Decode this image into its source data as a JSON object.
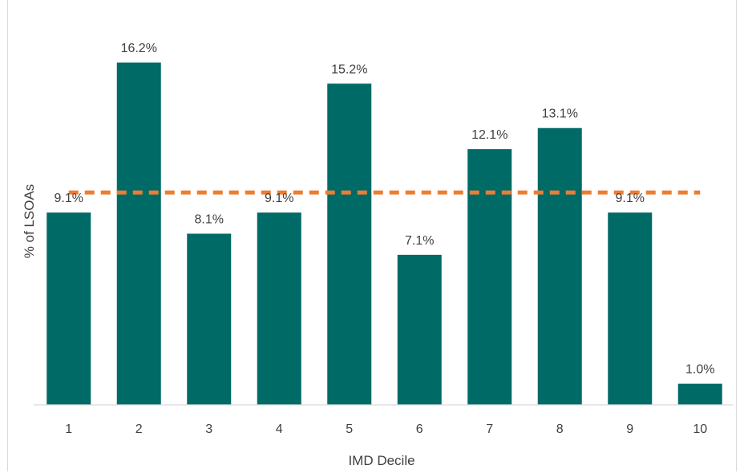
{
  "chart_data": {
    "type": "bar",
    "categories": [
      "1",
      "2",
      "3",
      "4",
      "5",
      "6",
      "7",
      "8",
      "9",
      "10"
    ],
    "values": [
      9.1,
      16.2,
      8.1,
      9.1,
      15.2,
      7.1,
      12.1,
      13.1,
      9.1,
      1.0
    ],
    "data_labels": [
      "9.1%",
      "16.2%",
      "8.1%",
      "9.1%",
      "15.2%",
      "7.1%",
      "12.1%",
      "13.1%",
      "9.1%",
      "1.0%"
    ],
    "reference_line": {
      "value": 9.1,
      "style": "dashed",
      "color": "#ED7D31"
    },
    "xlabel": "IMD Decile",
    "ylabel": "% of LSOAs",
    "ylim": [
      0,
      16.2
    ],
    "grid": false,
    "bar_color": "#006A66"
  }
}
